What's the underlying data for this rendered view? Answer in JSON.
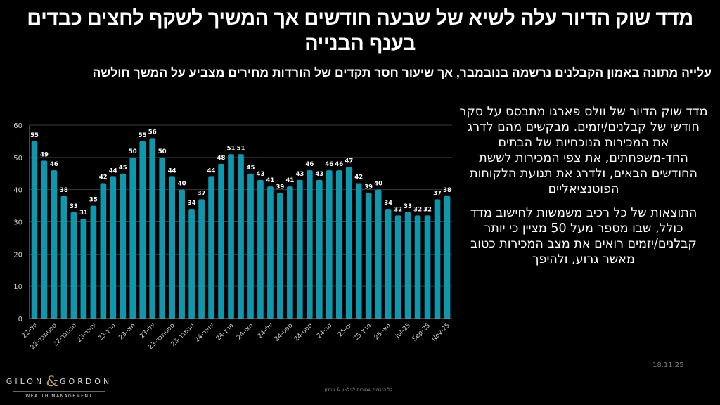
{
  "header": {
    "title": "מדד שוק הדיור עלה לשיא של שבעה חודשים אך המשיך לשקף לחצים כבדים בענף הבנייה",
    "subtitle": "עלייה מתונה באמון הקבלנים נרשמה בנובמבר, אך שיעור חסר תקדים של הורדות מחירים מצביע על המשך חולשה"
  },
  "side_text": {
    "paragraph1": "מדד שוק הדיור של וולס פארגו מתבסס על סקר חודשי של קבלנים/יזמים. מבקשים מהם לדרג את  המכירות הנוכחיות של הבתים החד-משפחתים, את צפי המכירות לששת החודשים הבאים, ולדרג את תנועת הלקוחות הפוטנציאליים",
    "paragraph2": "התוצאות של כל רכיב משמשות לחישוב מדד כולל, שבו מספר מעל 50 מציין כי יותר קבלנים/יזמים רואים את מצב  המכירות כטוב מאשר גרוע, ולהיפך"
  },
  "date": "18.11.25",
  "logo": {
    "name_left": "GILON",
    "ampersand": "&",
    "name_right": "GORDON",
    "tagline": "WEALTH MANAGEMENT"
  },
  "footer": "כל הזכויות שמורות לגילאון & גורדון",
  "colors": {
    "bar": "#0f97ad",
    "grid": "#3a3a3a",
    "axis": "#8a8a8a",
    "tick": "#d0d0d0"
  },
  "chart_data": {
    "type": "bar",
    "title": "",
    "xlabel": "",
    "ylabel": "",
    "ylim": [
      0,
      60
    ],
    "yticks": [
      0,
      10,
      20,
      30,
      40,
      50,
      60
    ],
    "grid": true,
    "values": [
      55,
      49,
      46,
      38,
      33,
      31,
      35,
      42,
      44,
      45,
      50,
      55,
      56,
      50,
      44,
      40,
      34,
      37,
      44,
      48,
      51,
      51,
      45,
      43,
      41,
      39,
      41,
      43,
      46,
      43,
      46,
      46,
      47,
      42,
      39,
      40,
      34,
      32,
      33,
      32,
      32,
      37,
      38
    ],
    "x_tick_labels": [
      "22-יולי",
      "22-ספטמבר",
      "22-נובמבר",
      "23-ינואר",
      "23-מרץ",
      "23-מאי",
      "23-יולי",
      "23-ספטמבר",
      "23-נובמבר",
      "24-ינואר",
      "24-מרץ",
      "24-מאי",
      "24-יולי",
      "24-ספט",
      "24-ספט",
      "24-נוב",
      "25-ינו",
      "25-מרץ",
      "25-מאי",
      "Jul-25",
      "Sep-25",
      "Nov-25"
    ],
    "x_tick_every": 2,
    "data_labels": true
  }
}
